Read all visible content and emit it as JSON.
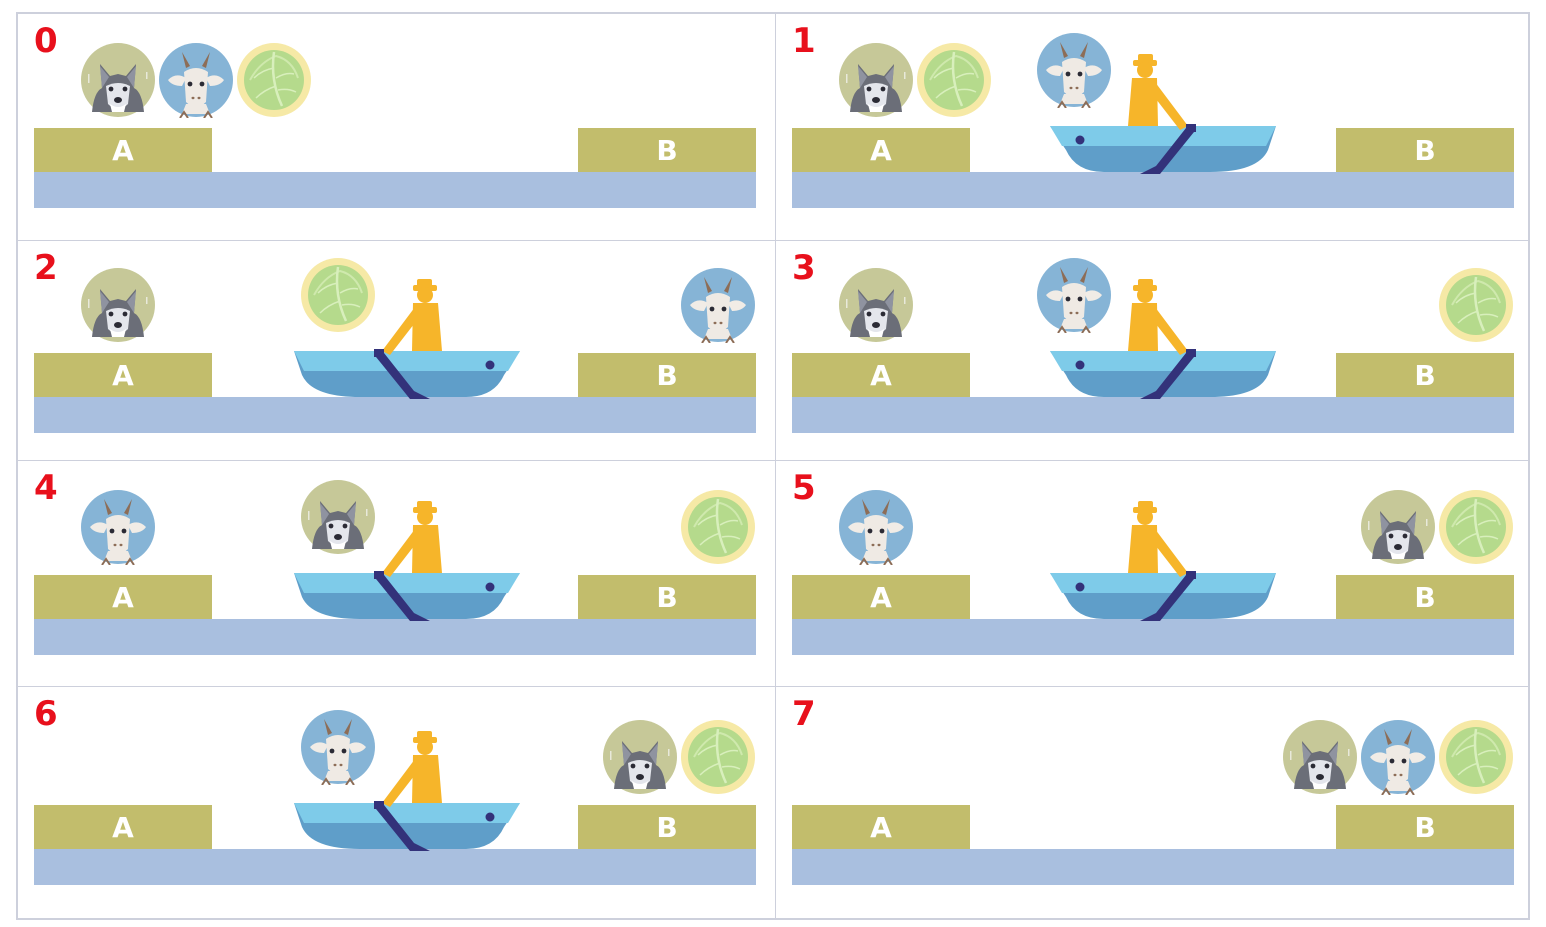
{
  "colors": {
    "step_number": "#e8101c",
    "bank": "#c2bd6c",
    "water": "#a9bfdf",
    "boat_top": "#7ecbe9",
    "boat_hull": "#5f9ec9",
    "farmer": "#f6b52a",
    "oar": "#33327a",
    "wolf_bg": "#c6c898",
    "goat_bg": "#86b4d6",
    "cabbage_bg": "#f6e9a6",
    "grid_border": "#cdd0dc"
  },
  "bank_labels": {
    "left": "A",
    "right": "B"
  },
  "steps": [
    {
      "number": "0",
      "left": [
        "wolf",
        "goat",
        "cabbage"
      ],
      "boat": null,
      "right": []
    },
    {
      "number": "1",
      "left": [
        "wolf",
        "cabbage"
      ],
      "boat": {
        "position": "middle",
        "direction": "to-B",
        "passenger": "goat"
      },
      "right": []
    },
    {
      "number": "2",
      "left": [
        "wolf"
      ],
      "boat": {
        "position": "middle",
        "direction": "to-A",
        "passenger": "cabbage"
      },
      "right": [
        "goat"
      ]
    },
    {
      "number": "3",
      "left": [
        "wolf"
      ],
      "boat": {
        "position": "middle",
        "direction": "to-B",
        "passenger": "goat"
      },
      "right": [
        "cabbage"
      ]
    },
    {
      "number": "4",
      "left": [
        "goat"
      ],
      "boat": {
        "position": "middle",
        "direction": "to-A",
        "passenger": "wolf"
      },
      "right": [
        "cabbage"
      ]
    },
    {
      "number": "5",
      "left": [
        "goat"
      ],
      "boat": {
        "position": "middle",
        "direction": "to-B",
        "passenger": null
      },
      "right": [
        "wolf",
        "cabbage"
      ]
    },
    {
      "number": "6",
      "left": [],
      "boat": {
        "position": "middle",
        "direction": "to-A",
        "passenger": "goat"
      },
      "right": [
        "wolf",
        "cabbage"
      ]
    },
    {
      "number": "7",
      "left": [],
      "boat": null,
      "right": [
        "wolf",
        "goat",
        "cabbage"
      ]
    }
  ]
}
